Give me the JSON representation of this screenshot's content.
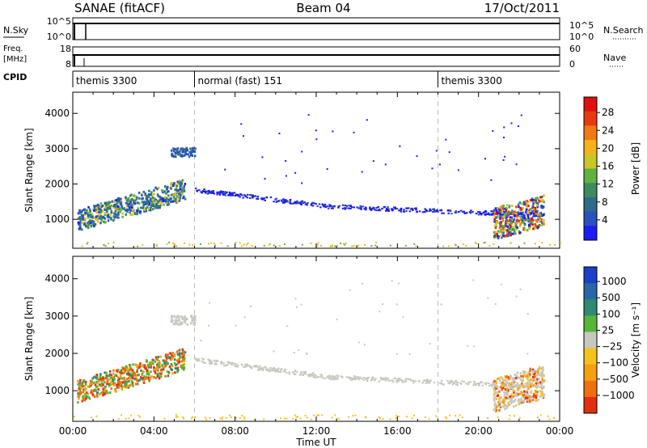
{
  "header": {
    "station": "SANAE (fitACF)",
    "beam": "Beam 04",
    "date": "17/Oct/2011"
  },
  "strips": {
    "nsky": {
      "label": "N.Sky",
      "right_label": "N.Search",
      "ticks_left": [
        "10^5",
        "10^0"
      ],
      "ticks_right": [
        "10^5",
        "10^0"
      ]
    },
    "freq": {
      "label_top": "Freq.",
      "label_bottom": "[MHz]",
      "right_label": "Nave",
      "ticks_left": [
        "18",
        "8"
      ],
      "ticks_right": [
        "60",
        "0"
      ]
    },
    "cpid": {
      "label": "CPID",
      "modes": [
        {
          "label": "themis 3300",
          "start_hour": 0
        },
        {
          "label": "normal (fast) 151",
          "start_hour": 6
        },
        {
          "label": "themis 3300",
          "start_hour": 18
        }
      ]
    }
  },
  "chart_data": [
    {
      "type": "heatmap",
      "name": "power",
      "ylabel": "Slant Range [km]",
      "xlabel": "",
      "xlim": [
        0,
        24
      ],
      "ylim": [
        180,
        4600
      ],
      "yticks": [
        "1000",
        "2000",
        "3000",
        "4000"
      ],
      "colorbar": {
        "label": "Power [dB]",
        "ticks": [
          "4",
          "8",
          "12",
          "16",
          "20",
          "24",
          "28"
        ],
        "colors": [
          "#1c1cf0",
          "#2a4fbf",
          "#2f6a8a",
          "#3d8a5f",
          "#63b043",
          "#c9c82a",
          "#f6b21c",
          "#f07a12",
          "#e83a10",
          "#e01010"
        ]
      }
    },
    {
      "type": "heatmap",
      "name": "velocity",
      "ylabel": "Slant Range [km]",
      "xlabel": "Time UT",
      "xlim": [
        0,
        24
      ],
      "ylim": [
        180,
        4600
      ],
      "yticks": [
        "1000",
        "2000",
        "3000",
        "4000"
      ],
      "xticks": [
        "00:00",
        "04:00",
        "08:00",
        "12:00",
        "16:00",
        "20:00",
        "00:00"
      ],
      "colorbar": {
        "label": "Velocity [m s⁻¹]",
        "ticks": [
          "1000",
          "500",
          "100",
          "25",
          "−25",
          "−100",
          "−500",
          "−1000"
        ],
        "colors": [
          "#1b3fc8",
          "#2a65a8",
          "#2f8a70",
          "#55b63a",
          "#c8c8c0",
          "#f5c21a",
          "#f5a010",
          "#f07010",
          "#e03010"
        ]
      }
    }
  ]
}
